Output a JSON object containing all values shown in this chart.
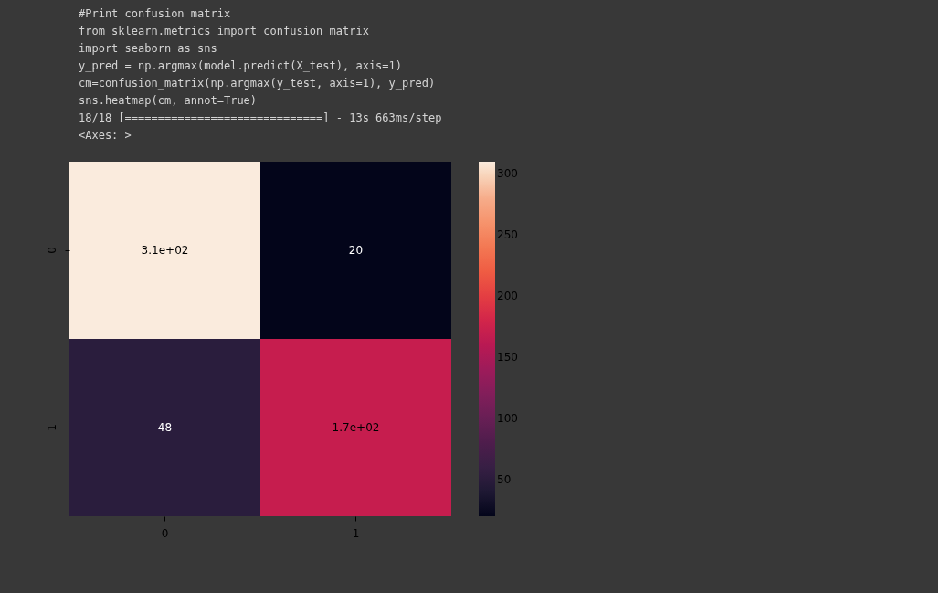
{
  "chart_data": {
    "type": "heatmap",
    "categories": [
      "0",
      "1"
    ],
    "y_categories": [
      "0",
      "1"
    ],
    "cells": [
      [
        310,
        20
      ],
      [
        48,
        170
      ]
    ],
    "cell_labels": [
      [
        "3.1e+02",
        "20"
      ],
      [
        "48",
        "1.7e+02"
      ]
    ],
    "clim": [
      20,
      310
    ],
    "cticks": [
      50,
      100,
      150,
      200,
      250,
      300
    ],
    "annotations": [
      "#Print confusion matrix",
      "from sklearn.metrics import confusion_matrix",
      "import seaborn as sns",
      "y_pred = np.argmax(model.predict(X_test), axis=1)",
      "cm=confusion_matrix(np.argmax(y_test, axis=1), y_pred)",
      "sns.heatmap(cm, annot=True)",
      "18/18 [==============================] - 13s 663ms/step",
      "<Axes: >"
    ]
  }
}
